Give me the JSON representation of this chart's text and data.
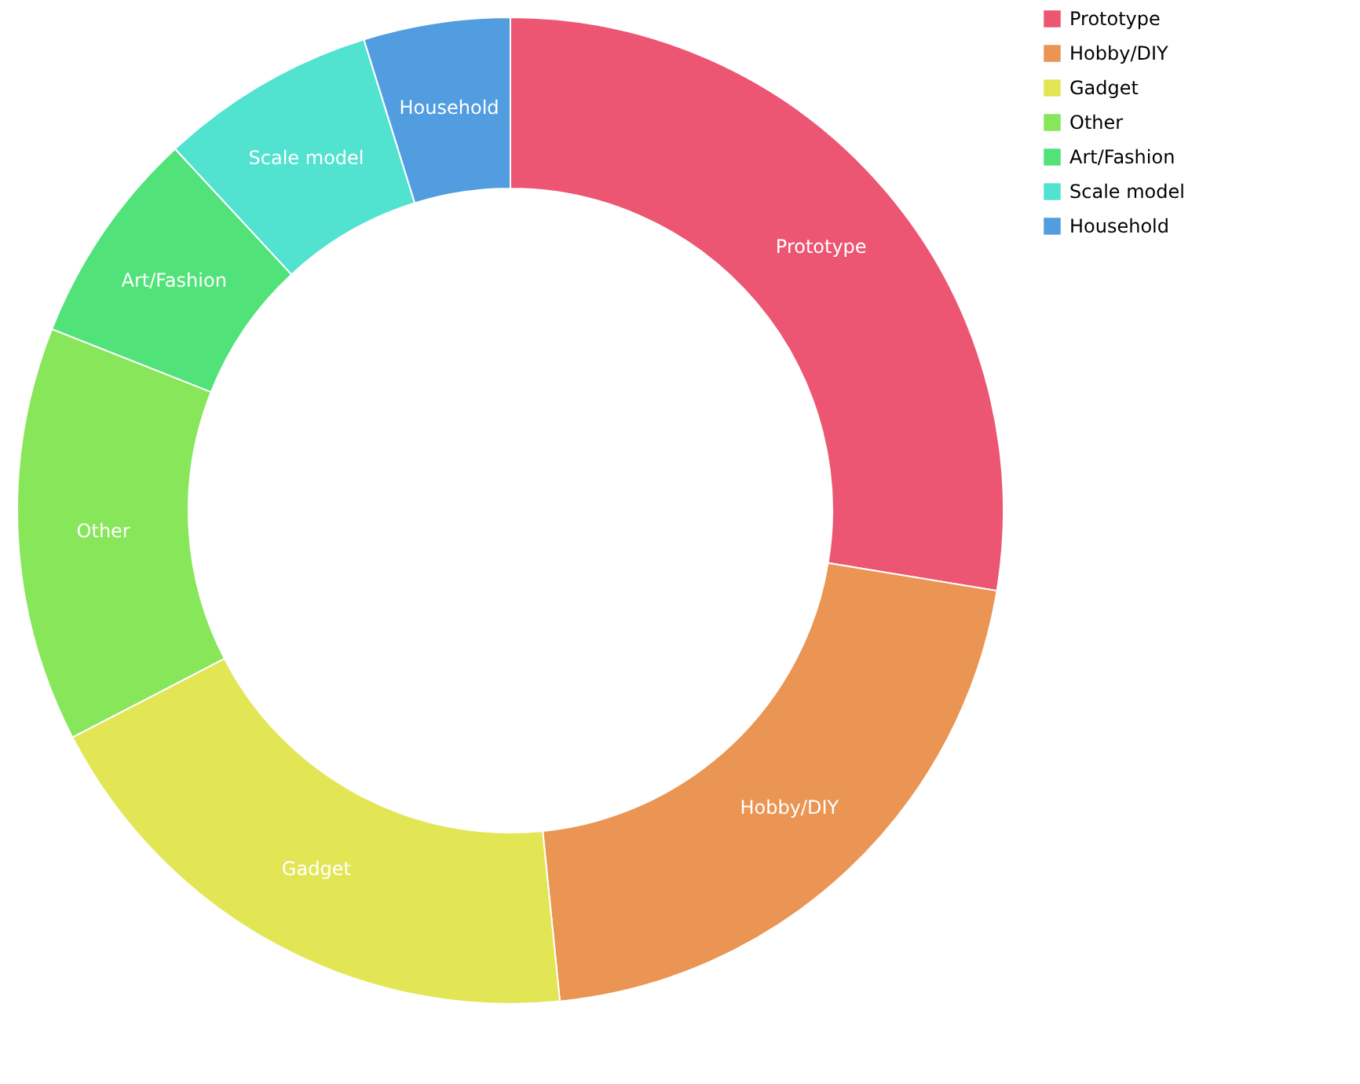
{
  "chart_data": {
    "type": "donut",
    "categories": [
      "Prototype",
      "Hobby/DIY",
      "Gadget",
      "Other",
      "Art/Fashion",
      "Scale model",
      "Household"
    ],
    "values": [
      27.6,
      20.8,
      19.0,
      13.6,
      7.1,
      7.1,
      4.8
    ],
    "colors": [
      "#ec5672",
      "#ea9553",
      "#e2e655",
      "#88e65a",
      "#52e27a",
      "#52e2d0",
      "#529de0"
    ],
    "legend": "right"
  }
}
